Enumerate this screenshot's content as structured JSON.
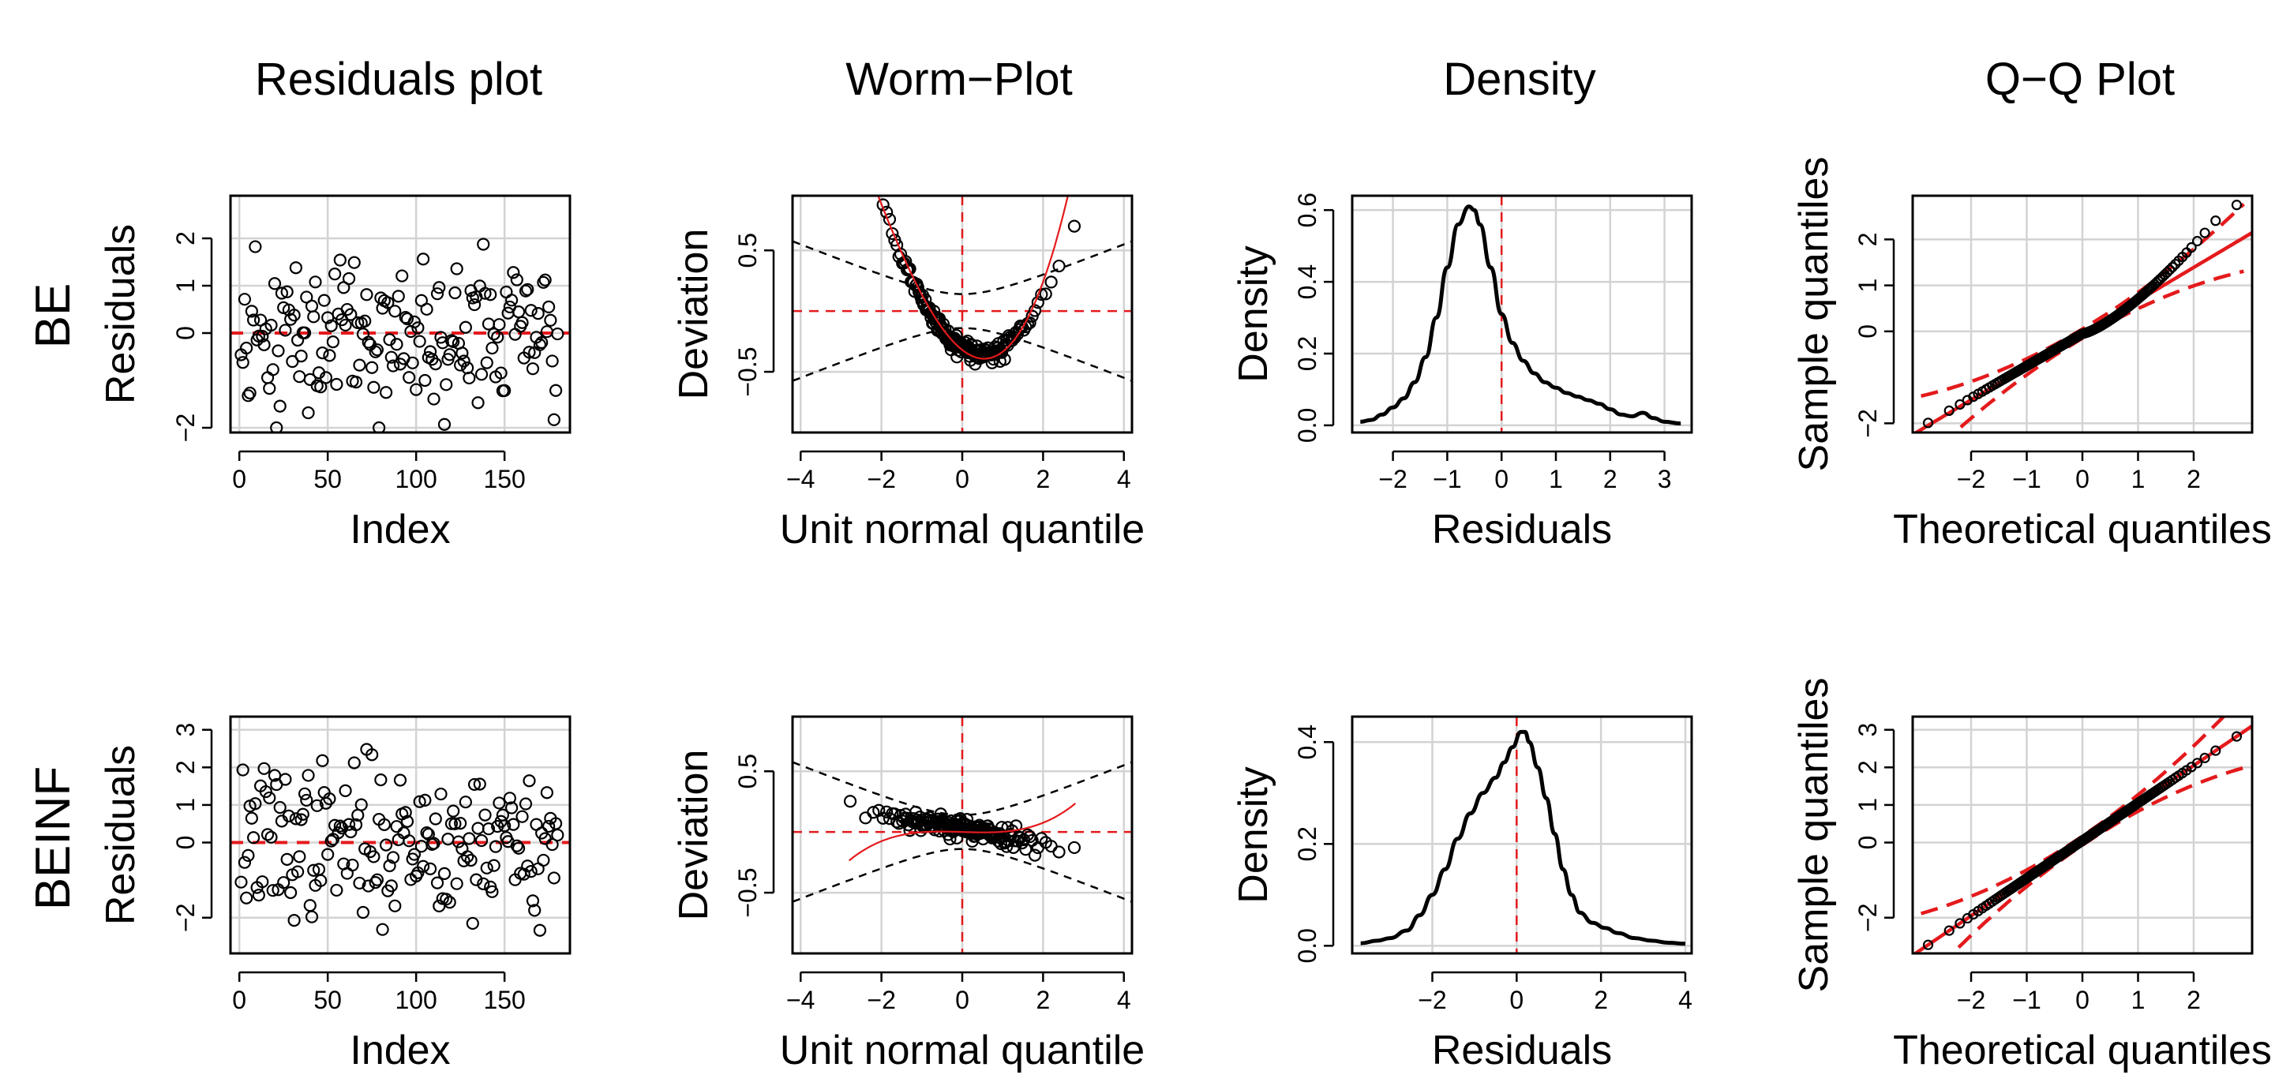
{
  "figure": {
    "columns": [
      "Residuals plot",
      "Worm−Plot",
      "Density",
      "Q−Q Plot"
    ],
    "rows": [
      "BE",
      "BEINF"
    ]
  },
  "colors": {
    "points": "#000000",
    "reference": "#e41a1c",
    "grid": "#d3d3d3"
  },
  "chart_data": [
    {
      "id": "be-residuals",
      "row": 0,
      "col": 0,
      "type": "scatter",
      "title": "",
      "xlabel": "Index",
      "ylabel": "Residuals",
      "xlim": [
        -5,
        187
      ],
      "ylim": [
        -2.1,
        2.9
      ],
      "xticks": [
        0,
        50,
        100,
        150
      ],
      "yticks": [
        -2,
        0,
        1,
        2
      ],
      "ytick_labels": [
        "−2",
        "0",
        "1",
        "2"
      ],
      "hline": 0,
      "generator": {
        "n": 180,
        "seed": 11,
        "kind": "skew-residual",
        "loc": -0.25,
        "scale": 0.75,
        "min": -2.0,
        "max": 2.75
      }
    },
    {
      "id": "be-worm",
      "row": 0,
      "col": 1,
      "type": "worm",
      "xlabel": "Unit normal quantile",
      "ylabel": "Deviation",
      "xlim": [
        -4.2,
        4.2
      ],
      "ylim": [
        -1.0,
        0.95
      ],
      "xticks": [
        -4,
        -2,
        0,
        2,
        4
      ],
      "yticks": [
        -0.5,
        0.5
      ],
      "xtick_labels": [
        "−4",
        "−2",
        "0",
        "2",
        "4"
      ],
      "ytick_labels": [
        "−0.5",
        "0.5"
      ],
      "worm": {
        "a": -0.3,
        "b": -0.2,
        "c": 0.2,
        "d": 0.0
      },
      "fit": {
        "a": -0.32,
        "b": -0.26,
        "c": 0.22,
        "d": 0.025
      },
      "n": 180,
      "seed": 21,
      "noise": 0.035
    },
    {
      "id": "be-density",
      "row": 0,
      "col": 2,
      "type": "line",
      "xlabel": "Residuals",
      "ylabel": "Density",
      "xlim": [
        -2.75,
        3.5
      ],
      "ylim": [
        -0.02,
        0.64
      ],
      "xticks": [
        -2,
        -1,
        0,
        1,
        2,
        3
      ],
      "yticks": [
        0.0,
        0.2,
        0.4,
        0.6
      ],
      "xtick_labels": [
        "−2",
        "−1",
        "0",
        "1",
        "2",
        "3"
      ],
      "ytick_labels": [
        "0.0",
        "0.2",
        "0.4",
        "0.6"
      ],
      "vline": 0,
      "x": [
        -2.6,
        -2.4,
        -2.2,
        -2.0,
        -1.8,
        -1.6,
        -1.4,
        -1.2,
        -1.0,
        -0.8,
        -0.6,
        -0.5,
        -0.4,
        -0.2,
        0.0,
        0.2,
        0.4,
        0.6,
        0.8,
        1.0,
        1.2,
        1.4,
        1.6,
        1.8,
        2.0,
        2.2,
        2.4,
        2.6,
        2.8,
        3.0,
        3.3
      ],
      "y": [
        0.01,
        0.015,
        0.03,
        0.05,
        0.075,
        0.12,
        0.19,
        0.3,
        0.44,
        0.56,
        0.61,
        0.6,
        0.56,
        0.44,
        0.31,
        0.23,
        0.18,
        0.145,
        0.12,
        0.105,
        0.09,
        0.08,
        0.07,
        0.06,
        0.045,
        0.03,
        0.025,
        0.035,
        0.02,
        0.01,
        0.005
      ]
    },
    {
      "id": "be-qq",
      "row": 0,
      "col": 3,
      "type": "scatter",
      "xlabel": "Theoretical quantiles",
      "ylabel": "Sample quantiles",
      "xlim": [
        -3.05,
        3.05
      ],
      "ylim": [
        -2.2,
        2.95
      ],
      "xticks": [
        -2,
        -1,
        0,
        1,
        2
      ],
      "yticks": [
        -2,
        0,
        1,
        2
      ],
      "xtick_labels": [
        "−2",
        "−1",
        "0",
        "1",
        "2"
      ],
      "ytick_labels": [
        "−2",
        "0",
        "1",
        "2"
      ],
      "ref_line": {
        "intercept": -0.05,
        "slope": 0.72
      },
      "band": {
        "halfwidth_center": 0.1,
        "halfwidth_growth": 0.075
      },
      "qq": {
        "n": 180,
        "tail_power": 1.35,
        "loc": -0.05,
        "scale": 0.7,
        "min": -2.05,
        "max": 2.75
      }
    },
    {
      "id": "beinf-residuals",
      "row": 1,
      "col": 0,
      "type": "scatter",
      "title": "",
      "xlabel": "Index",
      "ylabel": "Residuals",
      "xlim": [
        -5,
        187
      ],
      "ylim": [
        -2.95,
        3.35
      ],
      "xticks": [
        0,
        50,
        100,
        150
      ],
      "yticks": [
        -2,
        0,
        1,
        2,
        3
      ],
      "ytick_labels": [
        "−2",
        "0",
        "1",
        "2",
        "3"
      ],
      "hline": 0,
      "generator": {
        "n": 180,
        "seed": 37,
        "kind": "normal-residual",
        "loc": 0.05,
        "scale": 1.0,
        "min": -2.8,
        "max": 3.2
      }
    },
    {
      "id": "beinf-worm",
      "row": 1,
      "col": 1,
      "type": "worm",
      "xlabel": "Unit normal quantile",
      "ylabel": "Deviation",
      "xlim": [
        -4.2,
        4.2
      ],
      "ylim": [
        -1.0,
        0.95
      ],
      "xticks": [
        -4,
        -2,
        0,
        2,
        4
      ],
      "yticks": [
        -0.5,
        0.5
      ],
      "xtick_labels": [
        "−4",
        "−2",
        "0",
        "2",
        "4"
      ],
      "ytick_labels": [
        "−0.5",
        "0.5"
      ],
      "worm": {
        "a": 0.03,
        "b": -0.06,
        "c": 0.0,
        "d": 0.0
      },
      "fit": {
        "a": 0.0,
        "b": -0.01,
        "c": 0.0,
        "d": 0.012
      },
      "n": 180,
      "seed": 53,
      "noise": 0.04
    },
    {
      "id": "beinf-density",
      "row": 1,
      "col": 2,
      "type": "line",
      "xlabel": "Residuals",
      "ylabel": "Density",
      "xlim": [
        -3.9,
        4.15
      ],
      "ylim": [
        -0.015,
        0.45
      ],
      "xticks": [
        -2,
        0,
        2,
        4
      ],
      "yticks": [
        0.0,
        0.2,
        0.4
      ],
      "xtick_labels": [
        "−2",
        "0",
        "2",
        "4"
      ],
      "ytick_labels": [
        "0.0",
        "0.2",
        "0.4"
      ],
      "vline": 0,
      "x": [
        -3.7,
        -3.3,
        -3.0,
        -2.6,
        -2.3,
        -2.0,
        -1.7,
        -1.4,
        -1.1,
        -0.8,
        -0.5,
        -0.3,
        -0.1,
        0.1,
        0.2,
        0.3,
        0.5,
        0.7,
        0.9,
        1.1,
        1.3,
        1.5,
        1.8,
        2.1,
        2.4,
        2.8,
        3.2,
        3.6,
        4.0
      ],
      "y": [
        0.005,
        0.01,
        0.015,
        0.03,
        0.06,
        0.1,
        0.15,
        0.21,
        0.26,
        0.3,
        0.33,
        0.36,
        0.39,
        0.42,
        0.42,
        0.4,
        0.35,
        0.29,
        0.22,
        0.15,
        0.1,
        0.065,
        0.045,
        0.035,
        0.025,
        0.015,
        0.01,
        0.006,
        0.004
      ]
    },
    {
      "id": "beinf-qq",
      "row": 1,
      "col": 3,
      "type": "scatter",
      "xlabel": "Theoretical quantiles",
      "ylabel": "Sample quantiles",
      "xlim": [
        -3.05,
        3.05
      ],
      "ylim": [
        -2.95,
        3.35
      ],
      "xticks": [
        -2,
        -1,
        0,
        1,
        2
      ],
      "yticks": [
        -2,
        0,
        1,
        2,
        3
      ],
      "xtick_labels": [
        "−2",
        "−1",
        "0",
        "1",
        "2"
      ],
      "ytick_labels": [
        "−2",
        "0",
        "1",
        "2",
        "3"
      ],
      "ref_line": {
        "intercept": 0.05,
        "slope": 1.0
      },
      "band": {
        "halfwidth_center": 0.12,
        "halfwidth_growth": 0.1
      },
      "qq": {
        "n": 180,
        "tail_power": 1.0,
        "loc": 0.05,
        "scale": 1.0,
        "min": -2.75,
        "max": 3.15
      }
    }
  ]
}
